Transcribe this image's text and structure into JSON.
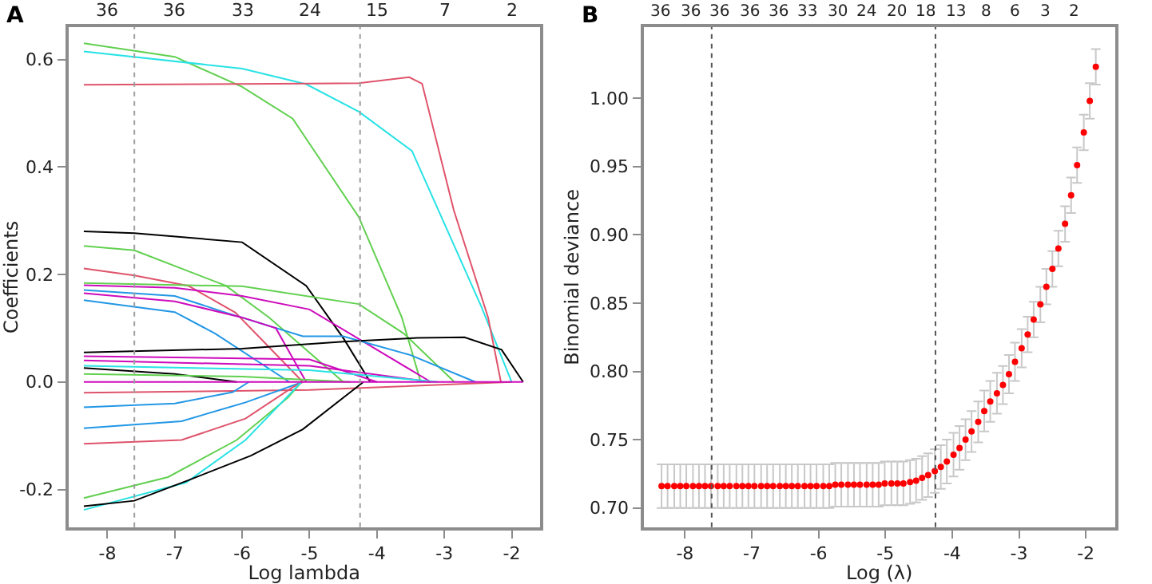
{
  "chart_data": [
    {
      "type": "line",
      "title": "A",
      "xlabel": "Log lambda",
      "ylabel": "Coefficients",
      "xlim": [
        -8.58,
        -1.58
      ],
      "xticks": [
        -8,
        -7,
        -6,
        -5,
        -4,
        -3,
        -2
      ],
      "annotations": [
        "36",
        "36",
        "33",
        "24",
        "15",
        "7",
        "2"
      ],
      "ylim": [
        -0.27,
        0.66
      ],
      "yticks": [
        -0.2,
        {
          "value": 0,
          "label": "0.0"
        },
        0.2,
        0.4,
        0.6
      ],
      "marker": "none",
      "line_style": "solid",
      "ref_lines": [
        {
          "axis": "x",
          "value": -7.6,
          "label": null,
          "color": "#9e9e9e",
          "line_style": "dotted"
        },
        {
          "axis": "x",
          "value": -4.25,
          "label": null,
          "color": "#9e9e9e",
          "line_style": "dotted"
        }
      ],
      "series": [
        {
          "color": "#61d04f",
          "x": [
            -8.35,
            -7,
            -6,
            -5.25,
            -4.27,
            -3.63,
            -3.35
          ],
          "values": [
            0.63,
            0.605,
            0.549,
            0.49,
            0.307,
            0.12,
            0
          ]
        },
        {
          "color": "#28e2e5",
          "x": [
            -8.35,
            -6,
            -5.05,
            -4.27,
            -3.48,
            -2.45,
            -2.0
          ],
          "values": [
            0.615,
            0.583,
            0.554,
            0.503,
            0.43,
            0.14,
            0
          ]
        },
        {
          "color": "#df536b",
          "x": [
            -8.35,
            -5,
            -4.27,
            -3.52,
            -3.33,
            -2.86,
            -2.35,
            -2.16
          ],
          "values": [
            0.553,
            0.555,
            0.556,
            0.567,
            0.555,
            0.32,
            0.12,
            0
          ]
        },
        {
          "color": "#000000",
          "x": [
            -8.35,
            -7.6,
            -6,
            -5.05,
            -4.49,
            -4.1
          ],
          "values": [
            0.28,
            0.277,
            0.26,
            0.179,
            0.08,
            0
          ]
        },
        {
          "color": "#61d04f",
          "x": [
            -8.35,
            -7.6,
            -6.24,
            -5.6,
            -4.5
          ],
          "values": [
            0.253,
            0.245,
            0.179,
            0.12,
            0
          ]
        },
        {
          "color": "#df536b",
          "x": [
            -8.35,
            -7.6,
            -6.8,
            -6.1,
            -5.1
          ],
          "values": [
            0.211,
            0.198,
            0.179,
            0.129,
            0
          ]
        },
        {
          "color": "#61d04f",
          "x": [
            -8.35,
            -6,
            -4.27,
            -3.6,
            -2.85
          ],
          "values": [
            0.184,
            0.178,
            0.145,
            0.09,
            0
          ]
        },
        {
          "color": "#cd0bbc",
          "x": [
            -8.35,
            -7,
            -6,
            -5,
            -4,
            -3.2
          ],
          "values": [
            0.18,
            0.175,
            0.16,
            0.135,
            0.06,
            0
          ]
        },
        {
          "color": "#2297e6",
          "x": [
            -8.35,
            -7,
            -6.24,
            -5.1,
            -4.5,
            -3.5,
            -2.54
          ],
          "values": [
            0.171,
            0.16,
            0.129,
            0.085,
            0.085,
            0.05,
            0
          ]
        },
        {
          "color": "#cd0bbc",
          "x": [
            -8.35,
            -7,
            -6,
            -5.5,
            -5.05
          ],
          "values": [
            0.165,
            0.15,
            0.12,
            0.1,
            0
          ]
        },
        {
          "color": "#2297e6",
          "x": [
            -8.35,
            -7,
            -6.4,
            -5.3
          ],
          "values": [
            0.152,
            0.13,
            0.09,
            0
          ]
        },
        {
          "color": "#000000",
          "x": [
            -8.35,
            -6,
            -4.5,
            -3.4,
            -2.7,
            -2.15,
            -1.83
          ],
          "values": [
            0.055,
            0.062,
            0.075,
            0.082,
            0.083,
            0.06,
            0
          ]
        },
        {
          "color": "#cd0bbc",
          "x": [
            -8.35,
            -5,
            -4.0
          ],
          "values": [
            0.048,
            0.042,
            0
          ]
        },
        {
          "color": "#cd0bbc",
          "x": [
            -8.35,
            -5,
            -3.2
          ],
          "values": [
            0.04,
            0.03,
            0
          ]
        },
        {
          "color": "#28e2e5",
          "x": [
            -8.35,
            -5,
            -3.1
          ],
          "values": [
            0.03,
            0.022,
            0
          ]
        },
        {
          "color": "#000000",
          "x": [
            -8.35,
            -7,
            -6.08
          ],
          "values": [
            0.026,
            0.015,
            0
          ]
        },
        {
          "color": "#61d04f",
          "x": [
            -8.35,
            -6,
            -4.4
          ],
          "values": [
            0.015,
            0.01,
            0
          ]
        },
        {
          "color": "#df536b",
          "x": [
            -8.35,
            -5,
            -2.0
          ],
          "values": [
            -0.02,
            -0.015,
            0
          ]
        },
        {
          "color": "#2297e6",
          "x": [
            -8.35,
            -7,
            -6.14,
            -5.9
          ],
          "values": [
            -0.047,
            -0.04,
            -0.019,
            0
          ]
        },
        {
          "color": "#2297e6",
          "x": [
            -8.35,
            -6.9,
            -5.95,
            -5.1
          ],
          "values": [
            -0.086,
            -0.073,
            -0.038,
            0
          ]
        },
        {
          "color": "#df536b",
          "x": [
            -8.35,
            -6.9,
            -5.95,
            -5.24,
            -5.1
          ],
          "values": [
            -0.115,
            -0.108,
            -0.068,
            -0.009,
            0
          ]
        },
        {
          "color": "#61d04f",
          "x": [
            -8.35,
            -7.1,
            -6.08,
            -5.32,
            -5.12
          ],
          "values": [
            -0.216,
            -0.177,
            -0.108,
            -0.029,
            0
          ]
        },
        {
          "color": "#28e2e5",
          "x": [
            -8.35,
            -6.83,
            -5.95,
            -5.12
          ],
          "values": [
            -0.238,
            -0.187,
            -0.108,
            0
          ]
        },
        {
          "color": "#000000",
          "x": [
            -8.35,
            -7.6,
            -6.78,
            -5.87,
            -5.1,
            -4.2
          ],
          "values": [
            -0.231,
            -0.221,
            -0.182,
            -0.137,
            -0.088,
            0
          ]
        },
        {
          "color": "#cd0bbc",
          "x": [
            -8.35,
            -4.5,
            -1.83
          ],
          "values": [
            0,
            0,
            0
          ]
        }
      ]
    },
    {
      "type": "scatter",
      "title": "B",
      "xlabel": "Log (λ)",
      "ylabel": "Binomial deviance",
      "xlim": [
        -8.62,
        -1.56
      ],
      "xticks": [
        -8,
        -7,
        -6,
        -5,
        -4,
        -3,
        -2
      ],
      "annotations": [
        "36",
        "36",
        "36",
        "36",
        "36",
        "33",
        "30",
        "24",
        "20",
        "18",
        "13",
        "8",
        "6",
        "3",
        "2"
      ],
      "ylim": [
        0.686,
        1.052
      ],
      "yticks": [
        {
          "value": 0.7,
          "label": "0.70"
        },
        {
          "value": 0.75,
          "label": "0.75"
        },
        {
          "value": 0.8,
          "label": "0.80"
        },
        {
          "value": 0.85,
          "label": "0.85"
        },
        {
          "value": 0.9,
          "label": "0.90"
        },
        {
          "value": 0.95,
          "label": "0.95"
        },
        {
          "value": 1.0,
          "label": "1.00"
        }
      ],
      "marker": "circle",
      "ref_lines": [
        {
          "axis": "x",
          "value": -7.6,
          "label": null,
          "color": "#555555",
          "line_style": "dotted"
        },
        {
          "axis": "x",
          "value": -4.25,
          "label": null,
          "color": "#555555",
          "line_style": "dotted"
        }
      ],
      "series": [
        {
          "color": "#ff0000",
          "x": [
            -8.35,
            -8.26,
            -8.16,
            -8.07,
            -7.98,
            -7.88,
            -7.79,
            -7.7,
            -7.61,
            -7.51,
            -7.42,
            -7.33,
            -7.23,
            -7.14,
            -7.05,
            -6.96,
            -6.86,
            -6.77,
            -6.68,
            -6.58,
            -6.49,
            -6.4,
            -6.31,
            -6.21,
            -6.12,
            -6.03,
            -5.93,
            -5.84,
            -5.75,
            -5.66,
            -5.56,
            -5.47,
            -5.38,
            -5.28,
            -5.19,
            -5.1,
            -5.01,
            -4.91,
            -4.82,
            -4.73,
            -4.63,
            -4.54,
            -4.45,
            -4.36,
            -4.26,
            -4.17,
            -4.08,
            -3.98,
            -3.89,
            -3.8,
            -3.71,
            -3.61,
            -3.52,
            -3.43,
            -3.33,
            -3.24,
            -3.15,
            -3.06,
            -2.96,
            -2.87,
            -2.78,
            -2.68,
            -2.59,
            -2.5,
            -2.41,
            -2.31,
            -2.22,
            -2.13,
            -2.03,
            -1.94,
            -1.85
          ],
          "values": [
            0.716,
            0.716,
            0.716,
            0.716,
            0.716,
            0.716,
            0.716,
            0.716,
            0.716,
            0.716,
            0.716,
            0.716,
            0.716,
            0.716,
            0.716,
            0.716,
            0.716,
            0.716,
            0.716,
            0.716,
            0.716,
            0.716,
            0.716,
            0.716,
            0.716,
            0.716,
            0.716,
            0.716,
            0.717,
            0.717,
            0.717,
            0.717,
            0.717,
            0.717,
            0.717,
            0.717,
            0.718,
            0.718,
            0.718,
            0.718,
            0.719,
            0.72,
            0.722,
            0.724,
            0.727,
            0.73,
            0.734,
            0.739,
            0.744,
            0.75,
            0.756,
            0.763,
            0.771,
            0.778,
            0.784,
            0.79,
            0.798,
            0.807,
            0.817,
            0.827,
            0.838,
            0.849,
            0.862,
            0.875,
            0.89,
            0.908,
            0.929,
            0.951,
            0.975,
            0.998,
            1.023
          ],
          "errors": [
            0.016,
            0.016,
            0.016,
            0.016,
            0.016,
            0.016,
            0.016,
            0.016,
            0.016,
            0.016,
            0.016,
            0.016,
            0.016,
            0.016,
            0.016,
            0.016,
            0.016,
            0.016,
            0.016,
            0.016,
            0.016,
            0.016,
            0.016,
            0.016,
            0.016,
            0.016,
            0.016,
            0.016,
            0.016,
            0.016,
            0.016,
            0.016,
            0.016,
            0.016,
            0.016,
            0.016,
            0.016,
            0.016,
            0.016,
            0.016,
            0.016,
            0.016,
            0.016,
            0.016,
            0.016,
            0.016,
            0.016,
            0.016,
            0.016,
            0.015,
            0.015,
            0.015,
            0.015,
            0.015,
            0.015,
            0.014,
            0.014,
            0.014,
            0.014,
            0.013,
            0.013,
            0.013,
            0.013,
            0.013,
            0.013,
            0.013,
            0.013,
            0.013,
            0.013,
            0.013,
            0.013
          ]
        }
      ]
    }
  ]
}
